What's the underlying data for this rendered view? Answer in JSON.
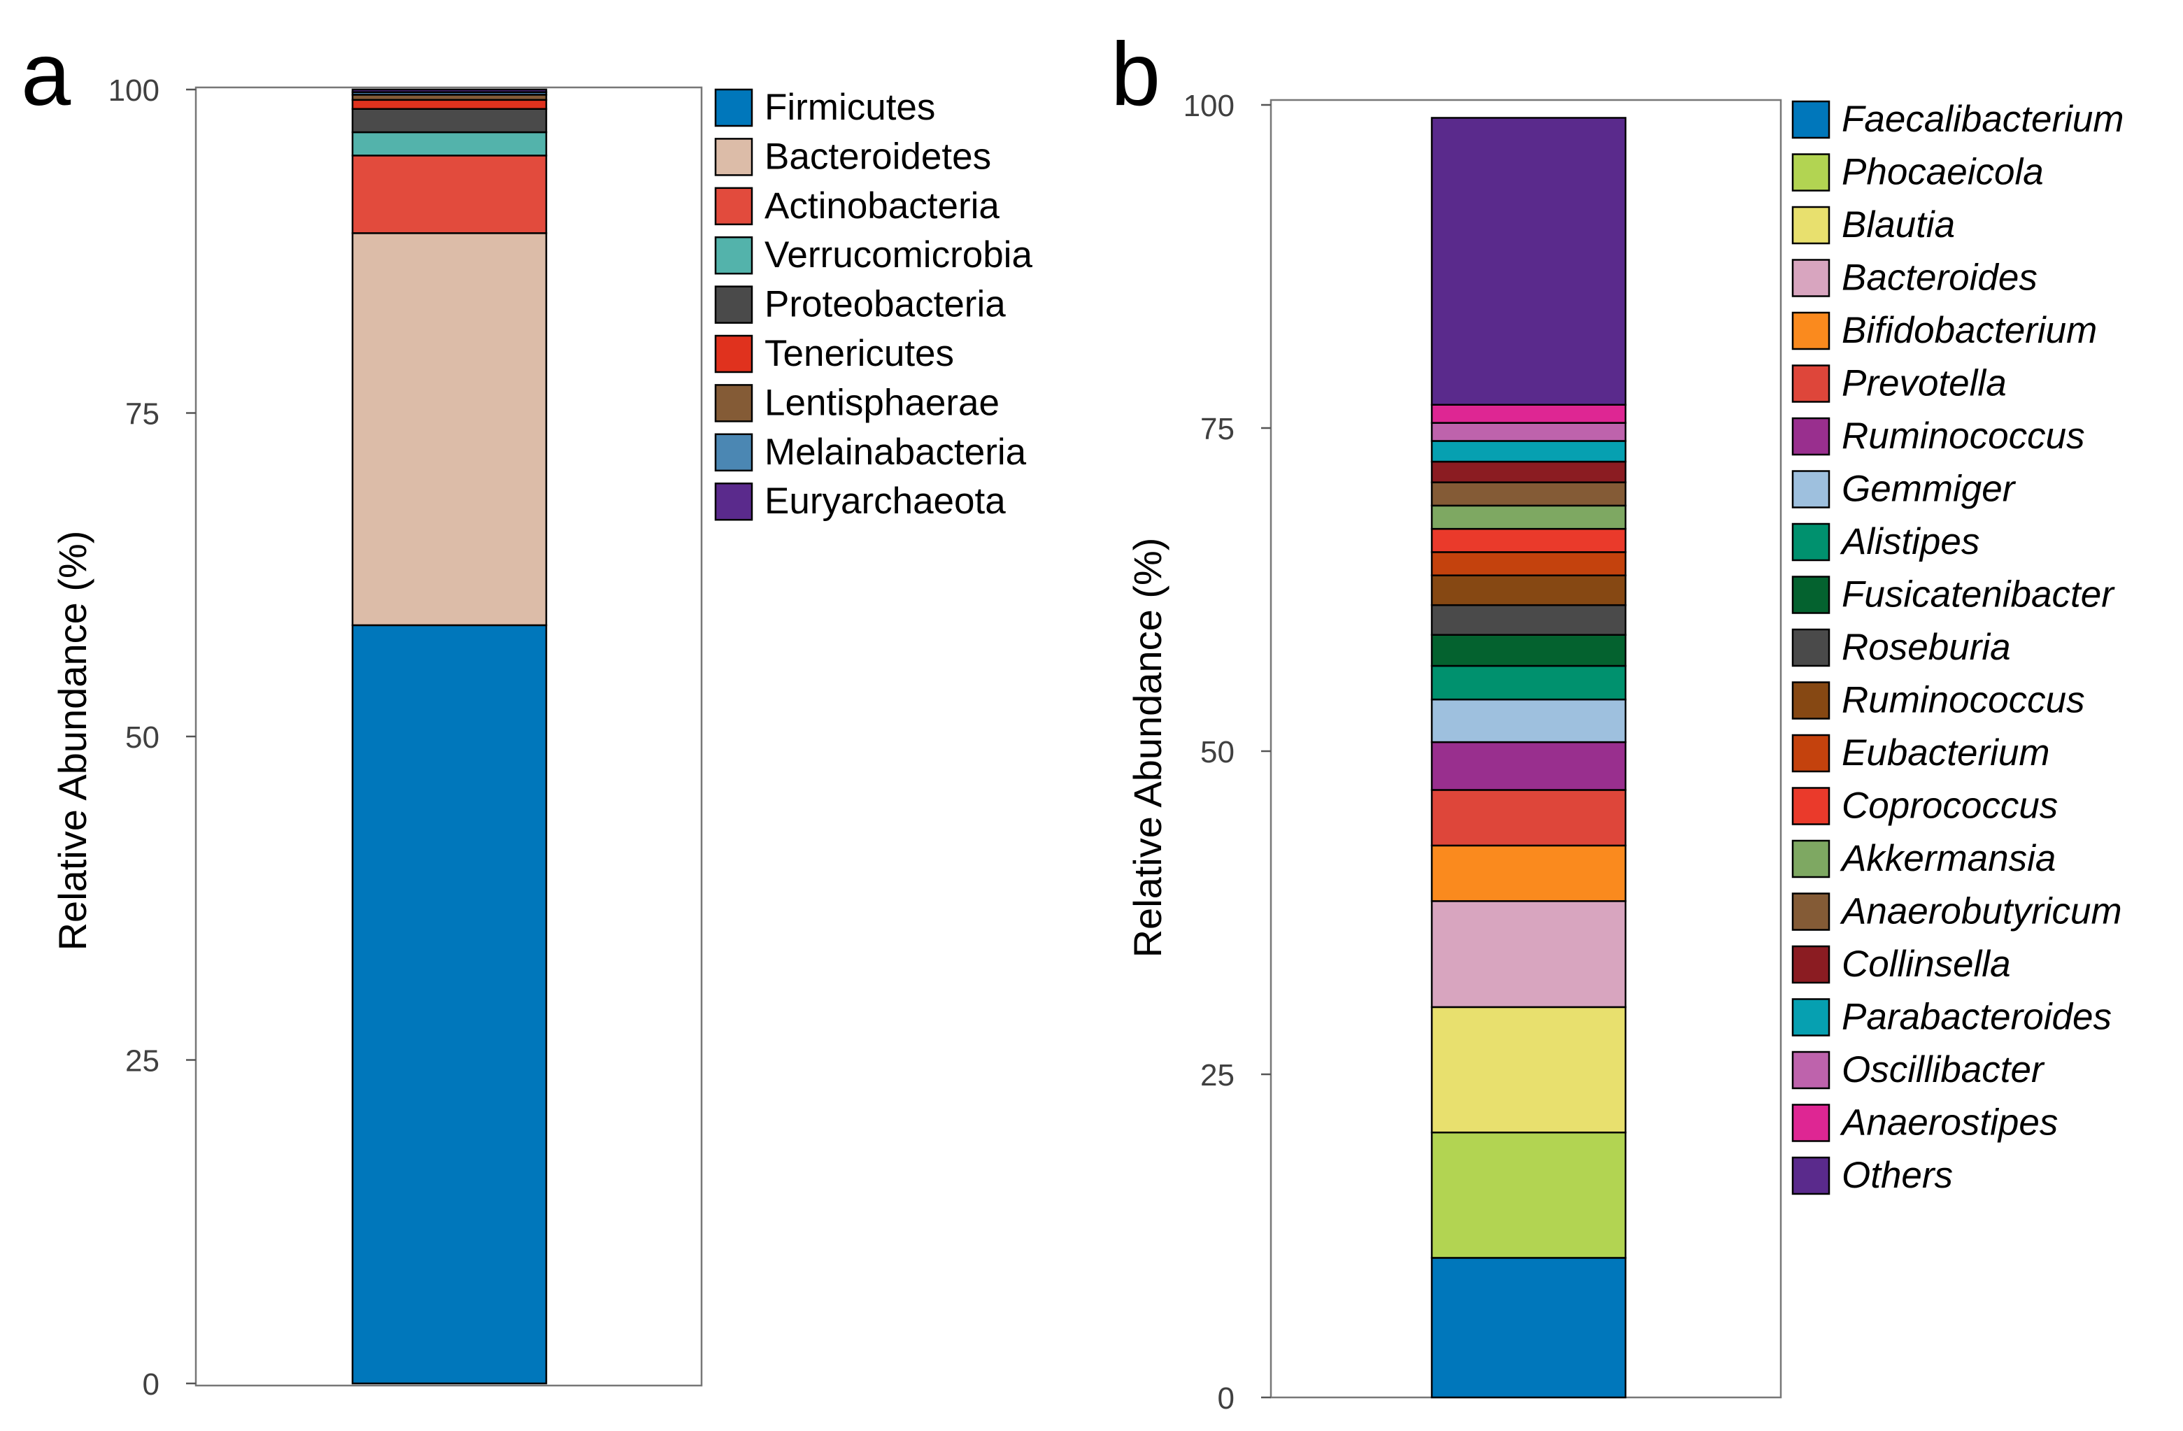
{
  "chart_data": [
    {
      "type": "bar",
      "stacked": true,
      "panel_label": "a",
      "ylabel": "Relative Abundance (%)",
      "ylim": [
        0,
        100
      ],
      "yticks": [
        0,
        25,
        50,
        75,
        100
      ],
      "legend_italic": false,
      "series": [
        {
          "name": "Firmicutes",
          "value": 58.6,
          "color": "#0077BB"
        },
        {
          "name": "Bacteroidetes",
          "value": 30.3,
          "color": "#DCBCA8"
        },
        {
          "name": "Actinobacteria",
          "value": 6.0,
          "color": "#E24B3D"
        },
        {
          "name": "Verrucomicrobia",
          "value": 1.8,
          "color": "#53B3AB"
        },
        {
          "name": "Proteobacteria",
          "value": 1.8,
          "color": "#4A4A4A"
        },
        {
          "name": "Tenericutes",
          "value": 0.7,
          "color": "#E0321E"
        },
        {
          "name": "Lentisphaerae",
          "value": 0.4,
          "color": "#845B36"
        },
        {
          "name": "Melainabacteria",
          "value": 0.2,
          "color": "#4B87B3"
        },
        {
          "name": "Euryarchaeota",
          "value": 0.2,
          "color": "#5A2A8C"
        }
      ]
    },
    {
      "type": "bar",
      "stacked": true,
      "panel_label": "b",
      "ylabel": "Relative Abundance (%)",
      "ylim": [
        0,
        100
      ],
      "yticks": [
        0,
        25,
        50,
        75,
        100
      ],
      "legend_italic": true,
      "series": [
        {
          "name": "Faecalibacterium",
          "value": 10.8,
          "color": "#0077BB"
        },
        {
          "name": "Phocaeicola",
          "value": 9.7,
          "color": "#B2D452"
        },
        {
          "name": "Blautia",
          "value": 9.7,
          "color": "#E8E06E"
        },
        {
          "name": "Bacteroides",
          "value": 8.2,
          "color": "#D8A5BF"
        },
        {
          "name": "Bifidobacterium",
          "value": 4.3,
          "color": "#FA8A1E"
        },
        {
          "name": "Prevotella",
          "value": 4.3,
          "color": "#DE463A"
        },
        {
          "name": "Ruminococcus",
          "value": 3.7,
          "color": "#992F8E"
        },
        {
          "name": "Gemmiger",
          "value": 3.3,
          "color": "#9EC0DE"
        },
        {
          "name": "Alistipes",
          "value": 2.6,
          "color": "#00916E"
        },
        {
          "name": "Fusicatenibacter",
          "value": 2.4,
          "color": "#04622F"
        },
        {
          "name": "Roseburia",
          "value": 2.3,
          "color": "#4A4A4A"
        },
        {
          "name": "Ruminococcus",
          "value": 2.3,
          "color": "#864813"
        },
        {
          "name": "Eubacterium",
          "value": 1.8,
          "color": "#C4420D"
        },
        {
          "name": "Coprococcus",
          "value": 1.8,
          "color": "#EA3A2B"
        },
        {
          "name": "Akkermansia",
          "value": 1.8,
          "color": "#7EA862"
        },
        {
          "name": "Anaerobutyricum",
          "value": 1.8,
          "color": "#845B36"
        },
        {
          "name": "Collinsella",
          "value": 1.6,
          "color": "#8B1C22"
        },
        {
          "name": "Parabacteroides",
          "value": 1.6,
          "color": "#06A0B1"
        },
        {
          "name": "Oscillibacter",
          "value": 1.4,
          "color": "#BE63AC"
        },
        {
          "name": "Anaerostipes",
          "value": 1.4,
          "color": "#DE2693"
        },
        {
          "name": "Others",
          "value": 22.2,
          "color": "#5A2A8C"
        }
      ]
    }
  ]
}
